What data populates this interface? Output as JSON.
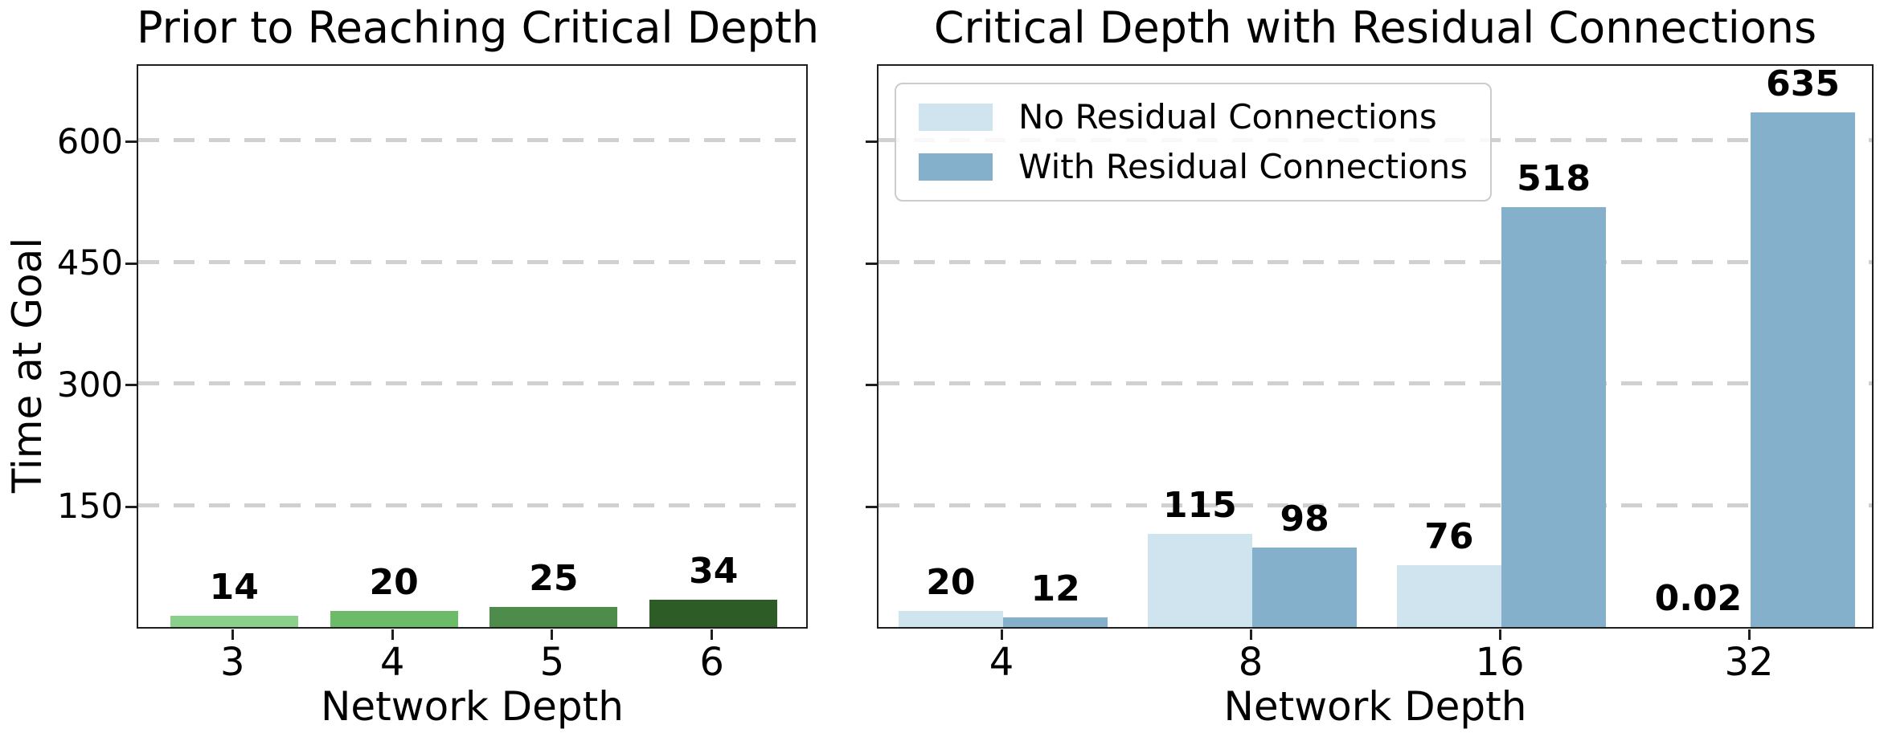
{
  "figure": {
    "background": "#ffffff"
  },
  "chart_data": [
    {
      "type": "bar",
      "title": "Prior to Reaching Critical Depth",
      "xlabel": "Network Depth",
      "ylabel": "Time at Goal",
      "categories": [
        "3",
        "4",
        "5",
        "6"
      ],
      "values": [
        14,
        20,
        25,
        34
      ],
      "value_labels": [
        "14",
        "20",
        "25",
        "34"
      ],
      "bar_colors": [
        "#8bd08a",
        "#6cbb68",
        "#4e8c4b",
        "#2e5c26"
      ],
      "ylim": [
        0,
        691
      ],
      "yticks": [
        150,
        300,
        450,
        600
      ],
      "show_ytick_labels": true,
      "grid": "dashed-horizontal",
      "x_layout": {
        "mode": "numeric",
        "bar_width_frac": 0.8
      }
    },
    {
      "type": "grouped-bar",
      "title": "Critical Depth with Residual Connections",
      "xlabel": "Network Depth",
      "ylabel": "",
      "categories": [
        "4",
        "8",
        "16",
        "32"
      ],
      "series": [
        {
          "name": "No Residual Connections",
          "color": "#d0e4ef",
          "values": [
            20,
            115,
            76,
            0.02
          ],
          "value_labels": [
            "20",
            "115",
            "76",
            "0.02"
          ]
        },
        {
          "name": "With Residual Connections",
          "color": "#85b0cb",
          "values": [
            12,
            98,
            518,
            635
          ],
          "value_labels": [
            "12",
            "98",
            "518",
            "635"
          ]
        }
      ],
      "ylim": [
        0,
        691
      ],
      "yticks": [
        150,
        300,
        450,
        600
      ],
      "show_ytick_labels": false,
      "grid": "dashed-horizontal",
      "legend": {
        "position": "upper-left"
      },
      "x_layout": {
        "mode": "categorical",
        "bar_width_frac": 0.42
      }
    }
  ],
  "colors": {
    "grid": "#d0d0d0",
    "spine": "#1f1f1f",
    "text": "#000000",
    "legend_border": "#cccccc"
  }
}
